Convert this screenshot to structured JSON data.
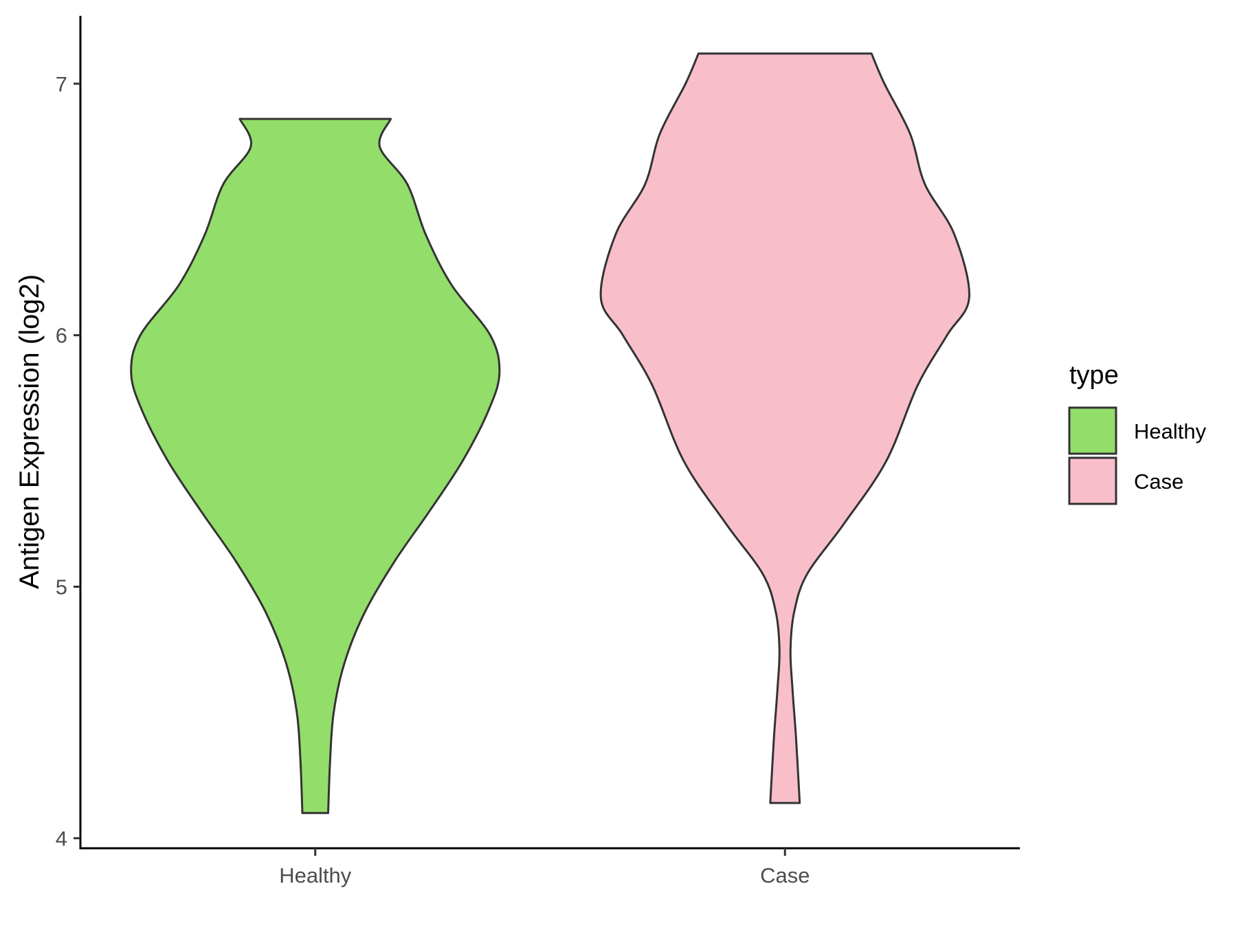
{
  "chart_data": {
    "type": "violin",
    "title": "",
    "xlabel": "",
    "ylabel": "Antigen Expression (log2)",
    "ylim": [
      3.96,
      7.27
    ],
    "yticks": [
      4,
      5,
      6,
      7
    ],
    "categories": [
      "Healthy",
      "Case"
    ],
    "legend": {
      "title": "type",
      "position": "right",
      "entries": [
        "Healthy",
        "Case"
      ]
    },
    "grid": false,
    "series": [
      {
        "name": "Healthy",
        "color": "#93DD6A",
        "min": 4.1,
        "max": 6.86,
        "density": [
          [
            4.1,
            0.07
          ],
          [
            4.3,
            0.08
          ],
          [
            4.5,
            0.1
          ],
          [
            4.7,
            0.16
          ],
          [
            4.9,
            0.27
          ],
          [
            5.1,
            0.43
          ],
          [
            5.3,
            0.62
          ],
          [
            5.5,
            0.8
          ],
          [
            5.7,
            0.94
          ],
          [
            5.85,
            1.0
          ],
          [
            6.0,
            0.95
          ],
          [
            6.2,
            0.74
          ],
          [
            6.4,
            0.6
          ],
          [
            6.6,
            0.5
          ],
          [
            6.75,
            0.35
          ],
          [
            6.86,
            0.41
          ]
        ]
      },
      {
        "name": "Case",
        "color": "#F8BFCB",
        "min": 4.14,
        "max": 7.12,
        "density": [
          [
            4.14,
            0.08
          ],
          [
            4.4,
            0.06
          ],
          [
            4.6,
            0.04
          ],
          [
            4.75,
            0.03
          ],
          [
            4.9,
            0.05
          ],
          [
            5.05,
            0.12
          ],
          [
            5.25,
            0.32
          ],
          [
            5.5,
            0.55
          ],
          [
            5.8,
            0.72
          ],
          [
            6.0,
            0.88
          ],
          [
            6.15,
            1.0
          ],
          [
            6.4,
            0.92
          ],
          [
            6.6,
            0.76
          ],
          [
            6.8,
            0.68
          ],
          [
            7.0,
            0.54
          ],
          [
            7.12,
            0.47
          ]
        ]
      }
    ]
  }
}
